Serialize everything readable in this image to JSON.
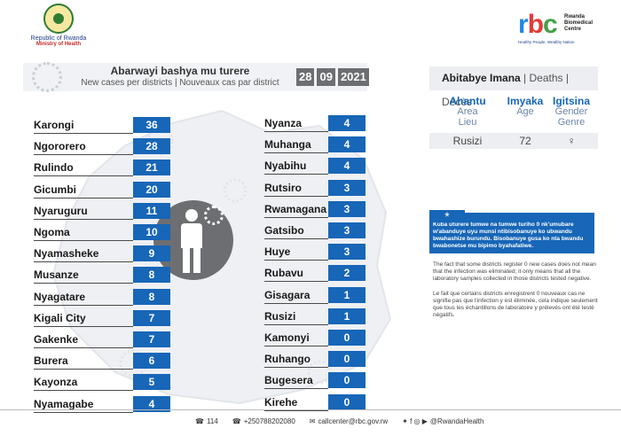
{
  "header": {
    "moh_line1": "Republic of Rwanda",
    "moh_line2": "Ministry of Health",
    "rbc_name": "Rwanda Biomedical Centre",
    "rbc_tagline": "Healthy People, Wealthy Nation"
  },
  "title": {
    "main": "Abarwayi bashya mu turere",
    "sub": "New cases per districts  |  Nouveaux cas par district",
    "date_day": "28",
    "date_month": "09",
    "date_year": "2021"
  },
  "districts_left": [
    {
      "name": "Karongi",
      "value": "36"
    },
    {
      "name": "Ngororero",
      "value": "28"
    },
    {
      "name": "Rulindo",
      "value": "21"
    },
    {
      "name": "Gicumbi",
      "value": "20"
    },
    {
      "name": "Nyaruguru",
      "value": "11"
    },
    {
      "name": "Ngoma",
      "value": "10"
    },
    {
      "name": "Nyamasheke",
      "value": "9"
    },
    {
      "name": "Musanze",
      "value": "8"
    },
    {
      "name": "Nyagatare",
      "value": "8"
    },
    {
      "name": "Kigali City",
      "value": "7"
    },
    {
      "name": "Gakenke",
      "value": "7"
    },
    {
      "name": "Burera",
      "value": "6"
    },
    {
      "name": "Kayonza",
      "value": "5"
    },
    {
      "name": "Nyamagabe",
      "value": "4"
    }
  ],
  "districts_right": [
    {
      "name": "Nyanza",
      "value": "4"
    },
    {
      "name": "Muhanga",
      "value": "4"
    },
    {
      "name": "Nyabihu",
      "value": "4"
    },
    {
      "name": "Rutsiro",
      "value": "3"
    },
    {
      "name": "Rwamagana",
      "value": "3"
    },
    {
      "name": "Gatsibo",
      "value": "3"
    },
    {
      "name": "Huye",
      "value": "3"
    },
    {
      "name": "Rubavu",
      "value": "2"
    },
    {
      "name": "Gisagara",
      "value": "1"
    },
    {
      "name": "Rusizi",
      "value": "1"
    },
    {
      "name": "Kamonyi",
      "value": "0"
    },
    {
      "name": "Ruhango",
      "value": "0"
    },
    {
      "name": "Bugesera",
      "value": "0"
    },
    {
      "name": "Kirehe",
      "value": "0"
    }
  ],
  "deaths": {
    "title_rw": "Abitabye Imana",
    "title_rest": "| Deaths  |  Décès",
    "col1": {
      "rw": "Ahantu",
      "en": "Area",
      "fr": "Lieu"
    },
    "col2": {
      "rw": "Imyaka",
      "en": "Age"
    },
    "col3": {
      "rw": "Igitsina",
      "en": "Gender",
      "fr": "Genre"
    },
    "row": {
      "area": "Rusizi",
      "age": "72",
      "gender": "♀"
    }
  },
  "info": {
    "star": "*",
    "rw": "Kuba uturere tumwe na tumwe turiho 0 nk'umubare w'abanduye uyu munsi ntibisobanuye ko ubwandu bwahashize burundu. Bisobanuye gusa ko nta bwandu bwabonetse mu bipimo byahafatiwe.",
    "en": "The fact that some districts register 0 new cases does not mean that the infection was eliminated; it only means that all the laboratory samples collected in those districts tested negative.",
    "fr": "Le fait que certains districts enregistrent 0 nouveaux cas ne signifie pas que l'infection y est éliminée, cela indique seulement que tous les échantillons de laboratoire y prélevés ont été testé négatifs."
  },
  "footer": {
    "hotline": "114",
    "phone": "+250788202080",
    "email": "callcenter@rbc.gov.rw",
    "social": "@RwandaHealth"
  },
  "colors": {
    "value_box": "#1766b7",
    "date_box": "#6d6e71",
    "accent_blue": "#1e3e8c"
  }
}
